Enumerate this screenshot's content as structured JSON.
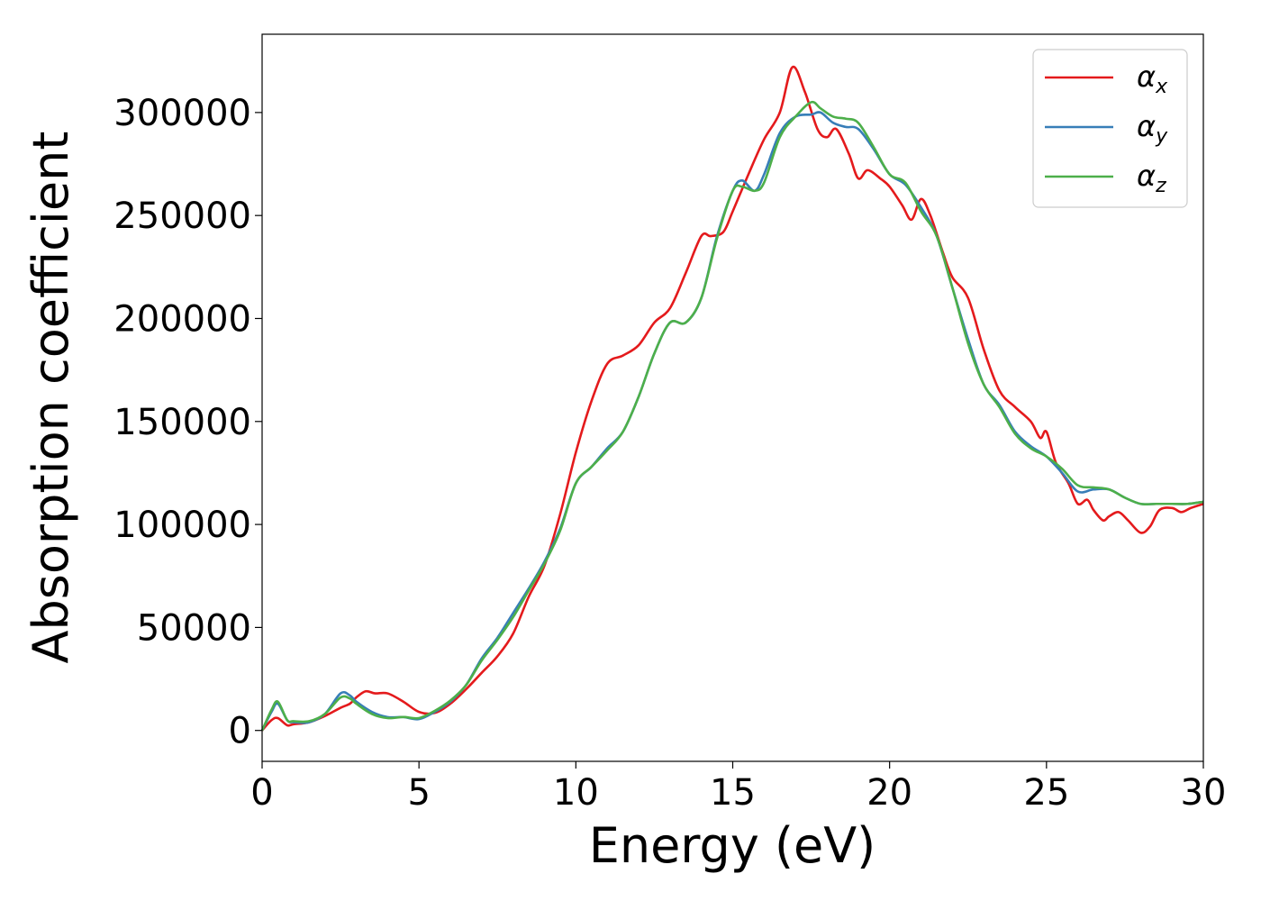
{
  "chart_data": {
    "type": "line",
    "xlabel": "Energy (eV)",
    "ylabel": "Absorption coefficient",
    "xlim": [
      0,
      30
    ],
    "ylim": [
      -15000,
      338000
    ],
    "xticks": [
      0,
      5,
      10,
      15,
      20,
      25,
      30
    ],
    "yticks": [
      0,
      50000,
      100000,
      150000,
      200000,
      250000,
      300000
    ],
    "xtick_labels": [
      "0",
      "5",
      "10",
      "15",
      "20",
      "25",
      "30"
    ],
    "ytick_labels": [
      "0",
      "50000",
      "100000",
      "150000",
      "200000",
      "250000",
      "300000"
    ],
    "grid": false,
    "legend_position": "top-right",
    "series": [
      {
        "name": "αx",
        "symbol": "α",
        "subscript": "x",
        "color": "#e41a1c",
        "x": [
          0,
          0.3,
          0.5,
          0.8,
          1.0,
          1.5,
          2.0,
          2.5,
          2.8,
          3.0,
          3.3,
          3.6,
          4.0,
          4.5,
          5.0,
          5.5,
          6.0,
          6.5,
          7.0,
          7.5,
          8.0,
          8.5,
          9.0,
          9.5,
          10.0,
          10.5,
          11.0,
          11.5,
          12.0,
          12.5,
          13.0,
          13.5,
          14.0,
          14.3,
          14.7,
          15.0,
          15.5,
          16.0,
          16.5,
          16.9,
          17.3,
          17.7,
          18.0,
          18.3,
          18.7,
          19.0,
          19.3,
          19.7,
          20.0,
          20.4,
          20.7,
          21.0,
          21.3,
          21.7,
          22.0,
          22.5,
          23.0,
          23.5,
          24.0,
          24.5,
          24.8,
          25.0,
          25.3,
          25.7,
          26.0,
          26.3,
          26.5,
          26.8,
          27.0,
          27.3,
          27.6,
          28.0,
          28.3,
          28.6,
          29.0,
          29.3,
          29.6,
          30.0
        ],
        "y": [
          0,
          5000,
          6000,
          2500,
          3000,
          4000,
          7000,
          11000,
          13000,
          16000,
          19000,
          18000,
          18000,
          14000,
          9000,
          8500,
          13000,
          20000,
          28000,
          36000,
          47000,
          65000,
          80000,
          105000,
          135000,
          160000,
          178000,
          182000,
          187000,
          198000,
          205000,
          222000,
          240000,
          240000,
          242000,
          252000,
          270000,
          287000,
          300000,
          322000,
          310000,
          292000,
          288000,
          292000,
          280000,
          268000,
          272000,
          268000,
          264000,
          255000,
          248000,
          258000,
          250000,
          232000,
          220000,
          210000,
          185000,
          165000,
          157000,
          150000,
          142000,
          145000,
          130000,
          120000,
          110000,
          112000,
          107000,
          102000,
          104000,
          106000,
          102000,
          96000,
          99000,
          107000,
          108000,
          106000,
          108000,
          110000
        ]
      },
      {
        "name": "αy",
        "symbol": "α",
        "subscript": "y",
        "color": "#377eb8",
        "x": [
          0,
          0.3,
          0.5,
          0.8,
          1.0,
          1.5,
          2.0,
          2.5,
          2.8,
          3.0,
          3.5,
          4.0,
          4.5,
          5.0,
          5.5,
          6.0,
          6.5,
          7.0,
          7.5,
          8.0,
          8.5,
          9.0,
          9.5,
          10.0,
          10.5,
          11.0,
          11.5,
          12.0,
          12.5,
          13.0,
          13.5,
          14.0,
          14.5,
          15.0,
          15.3,
          15.7,
          16.0,
          16.5,
          17.0,
          17.5,
          17.8,
          18.2,
          18.6,
          19.0,
          19.5,
          20.0,
          20.5,
          21.0,
          21.5,
          22.0,
          22.5,
          23.0,
          23.5,
          24.0,
          24.5,
          25.0,
          25.5,
          26.0,
          26.5,
          27.0,
          27.5,
          28.0,
          28.5,
          29.0,
          29.5,
          30.0
        ],
        "y": [
          0,
          9000,
          13000,
          5000,
          4000,
          4000,
          8000,
          18000,
          17000,
          14000,
          9000,
          6500,
          6500,
          5500,
          9000,
          14000,
          22000,
          35000,
          45000,
          57000,
          69000,
          82000,
          98000,
          120000,
          128000,
          137000,
          145000,
          162000,
          183000,
          198000,
          198000,
          210000,
          240000,
          262000,
          267000,
          262000,
          270000,
          290000,
          298000,
          299000,
          300000,
          295000,
          293000,
          292000,
          282000,
          270000,
          265000,
          254000,
          240000,
          215000,
          190000,
          168000,
          158000,
          145000,
          138000,
          133000,
          125000,
          116000,
          117000,
          117000,
          113000,
          110000,
          110000,
          110000,
          110000,
          111000
        ]
      },
      {
        "name": "αz",
        "symbol": "α",
        "subscript": "z",
        "color": "#4daf4a",
        "x": [
          0,
          0.3,
          0.5,
          0.8,
          1.0,
          1.5,
          2.0,
          2.5,
          2.8,
          3.0,
          3.5,
          4.0,
          4.5,
          5.0,
          5.5,
          6.0,
          6.5,
          7.0,
          7.5,
          8.0,
          8.5,
          9.0,
          9.5,
          10.0,
          10.5,
          11.0,
          11.5,
          12.0,
          12.5,
          13.0,
          13.5,
          14.0,
          14.5,
          15.0,
          15.3,
          15.7,
          16.0,
          16.5,
          17.0,
          17.5,
          17.8,
          18.2,
          18.6,
          19.0,
          19.5,
          20.0,
          20.5,
          21.0,
          21.5,
          22.0,
          22.5,
          23.0,
          23.5,
          24.0,
          24.5,
          25.0,
          25.5,
          26.0,
          26.5,
          27.0,
          27.5,
          28.0,
          28.5,
          29.0,
          29.5,
          30.0
        ],
        "y": [
          0,
          10000,
          14000,
          5000,
          4500,
          4500,
          8000,
          16000,
          15500,
          13000,
          8000,
          6000,
          6500,
          6000,
          9500,
          14500,
          22000,
          34000,
          44000,
          55000,
          68000,
          81000,
          97000,
          120000,
          128000,
          136000,
          145000,
          162000,
          183000,
          198000,
          198000,
          210000,
          239000,
          262000,
          264000,
          262000,
          266000,
          288000,
          298000,
          305000,
          302000,
          298000,
          297000,
          295000,
          283000,
          270000,
          266000,
          252000,
          240000,
          215000,
          188000,
          168000,
          157000,
          144000,
          137000,
          133000,
          127000,
          119000,
          118000,
          117000,
          113000,
          110000,
          110000,
          110000,
          110000,
          111000
        ]
      }
    ]
  }
}
